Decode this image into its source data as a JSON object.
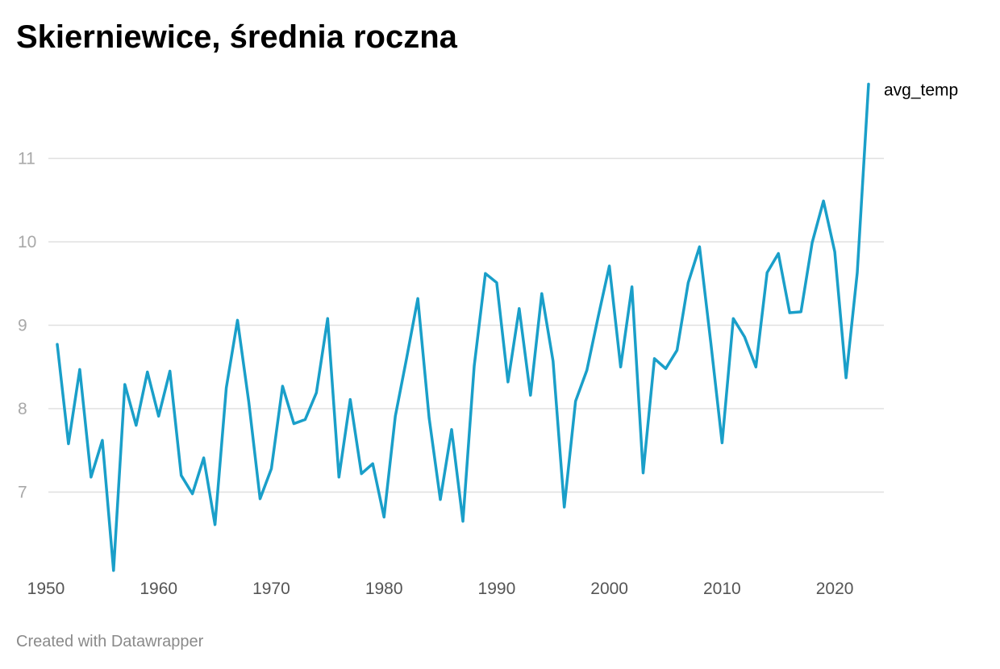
{
  "title": "Skierniewice, średnia roczna",
  "footer": "Created with Datawrapper",
  "chart_data": {
    "type": "line",
    "title": "Skierniewice, średnia roczna",
    "xlabel": "",
    "ylabel": "",
    "xlim": [
      1950,
      2023
    ],
    "ylim": [
      6,
      12
    ],
    "y_ticks": [
      7,
      8,
      9,
      10,
      11
    ],
    "x_ticks": [
      1950,
      1960,
      1970,
      1980,
      1990,
      2000,
      2010,
      2020
    ],
    "grid": "horizontal",
    "legend": "inline-right",
    "colors": {
      "line": "#1a9fc9",
      "grid": "#e0e0e0"
    },
    "series": [
      {
        "name": "avg_temp",
        "x": [
          1951,
          1952,
          1953,
          1954,
          1955,
          1956,
          1957,
          1958,
          1959,
          1960,
          1961,
          1962,
          1963,
          1964,
          1965,
          1966,
          1967,
          1968,
          1969,
          1970,
          1971,
          1972,
          1973,
          1974,
          1975,
          1976,
          1977,
          1978,
          1979,
          1980,
          1981,
          1982,
          1983,
          1984,
          1985,
          1986,
          1987,
          1988,
          1989,
          1990,
          1991,
          1992,
          1993,
          1994,
          1995,
          1996,
          1997,
          1998,
          1999,
          2000,
          2001,
          2002,
          2003,
          2004,
          2005,
          2006,
          2007,
          2008,
          2009,
          2010,
          2011,
          2012,
          2013,
          2014,
          2015,
          2016,
          2017,
          2018,
          2019,
          2020,
          2021,
          2022,
          2023
        ],
        "values": [
          8.77,
          7.58,
          8.47,
          7.18,
          7.62,
          6.06,
          8.29,
          7.8,
          8.44,
          7.91,
          8.45,
          7.2,
          6.98,
          7.41,
          6.61,
          8.25,
          9.06,
          8.08,
          6.92,
          7.28,
          8.27,
          7.82,
          7.87,
          8.19,
          9.08,
          7.18,
          8.11,
          7.22,
          7.34,
          6.7,
          7.91,
          8.6,
          9.32,
          7.89,
          6.91,
          7.75,
          6.65,
          8.51,
          9.62,
          9.51,
          8.32,
          9.2,
          8.16,
          9.38,
          8.57,
          6.82,
          8.09,
          8.46,
          9.1,
          9.71,
          8.5,
          9.46,
          7.23,
          8.6,
          8.48,
          8.7,
          9.51,
          9.94,
          8.79,
          7.59,
          9.08,
          8.86,
          8.5,
          9.63,
          9.86,
          9.15,
          9.16,
          9.99,
          10.49,
          9.88,
          8.37,
          9.63,
          11.89
        ]
      }
    ]
  }
}
